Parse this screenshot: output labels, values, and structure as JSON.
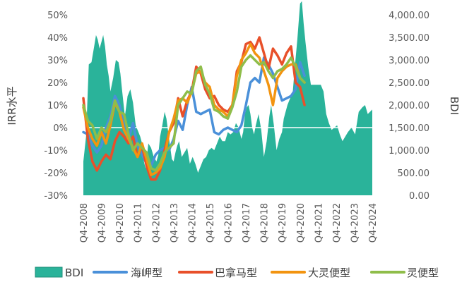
{
  "chart_data": {
    "type": "area+line",
    "left_axis": {
      "label": "IRR水平",
      "ticks": [
        "50%",
        "40%",
        "30%",
        "20%",
        "10%",
        "0%",
        "-10%",
        "-20%",
        "-30%"
      ],
      "values": [
        50,
        40,
        30,
        20,
        10,
        0,
        -10,
        -20,
        -30
      ],
      "ylim": [
        -30,
        50
      ]
    },
    "right_axis": {
      "label": "BDI",
      "ticks": [
        "4,000.00",
        "3,500.00",
        "3,000.00",
        "2,500.00",
        "2,000.00",
        "1,500.00",
        "1,000.00",
        "500.00",
        "0.00"
      ],
      "values": [
        4000,
        3500,
        3000,
        2500,
        2000,
        1500,
        1000,
        500,
        0
      ],
      "ylim": [
        0,
        4000
      ]
    },
    "x_axis": {
      "ticks": [
        "Q4-2008",
        "Q4-2009",
        "Q4-2010",
        "Q4-2011",
        "Q4-2012",
        "Q4-2013",
        "Q4-2014",
        "Q4-2015",
        "Q4-2016",
        "Q4-2017",
        "Q4-2018",
        "Q4-2019",
        "Q4-2020",
        "Q4-2021",
        "Q4-2022",
        "Q4-2023",
        "Q4-2024"
      ],
      "xlim": [
        2008.75,
        2024.75
      ]
    },
    "legend": {
      "placement": "bottom",
      "items": [
        "BDI",
        "海岬型",
        "巴拿马型",
        "大灵便型",
        "灵便型"
      ]
    },
    "zero_line": true,
    "bdi": {
      "name": "BDI",
      "color": "#2ab39a",
      "x": [
        2008.75,
        2008.9,
        2009.05,
        2009.2,
        2009.35,
        2009.45,
        2009.55,
        2009.65,
        2009.75,
        2009.85,
        2009.95,
        2010.05,
        2010.15,
        2010.25,
        2010.4,
        2010.55,
        2010.7,
        2010.8,
        2010.9,
        2011.05,
        2011.2,
        2011.35,
        2011.5,
        2011.65,
        2011.8,
        2011.9,
        2012.0,
        2012.1,
        2012.2,
        2012.35,
        2012.5,
        2012.65,
        2012.8,
        2012.9,
        2013.0,
        2013.1,
        2013.25,
        2013.35,
        2013.45,
        2013.55,
        2013.65,
        2013.75,
        2013.85,
        2013.95,
        2014.05,
        2014.2,
        2014.35,
        2014.5,
        2014.65,
        2014.8,
        2014.95,
        2015.1,
        2015.25,
        2015.4,
        2015.55,
        2015.7,
        2015.85,
        2016.0,
        2016.15,
        2016.3,
        2016.45,
        2016.6,
        2016.75,
        2016.9,
        2017.05,
        2017.2,
        2017.35,
        2017.5,
        2017.6,
        2017.7,
        2017.8,
        2017.9,
        2018.0,
        2018.1,
        2018.2,
        2018.3,
        2018.45,
        2018.6,
        2018.75,
        2018.9,
        2019.05,
        2019.15,
        2019.3,
        2019.45,
        2019.6,
        2019.75,
        2019.85,
        2019.95,
        2020.05,
        2020.15,
        2020.25,
        2020.35,
        2020.45,
        2020.6,
        2020.75,
        2020.85,
        2020.95,
        2021.05,
        2021.2,
        2021.35,
        2021.45,
        2021.6,
        2021.75,
        2021.9,
        2022.05,
        2022.2,
        2022.35,
        2022.5,
        2022.65,
        2022.8,
        2022.95,
        2023.1,
        2023.25,
        2023.4,
        2023.6,
        2023.8,
        2024.0,
        2024.2,
        2024.35,
        2024.5,
        2024.75
      ],
      "values": [
        750,
        1300,
        2900,
        2950,
        3300,
        3550,
        3450,
        3250,
        3400,
        3550,
        3300,
        2900,
        2650,
        2300,
        2600,
        3000,
        2950,
        2700,
        2300,
        1750,
        2200,
        2350,
        2050,
        1550,
        1400,
        1300,
        1150,
        750,
        600,
        1150,
        1050,
        850,
        750,
        900,
        1300,
        1500,
        1850,
        1700,
        1400,
        1100,
        800,
        750,
        950,
        1100,
        1200,
        850,
        950,
        1050,
        700,
        850,
        700,
        500,
        650,
        800,
        850,
        1000,
        1050,
        1000,
        1150,
        1300,
        1200,
        1200,
        1400,
        1350,
        1400,
        1600,
        1500,
        1250,
        1400,
        1800,
        1950,
        2000,
        1800,
        1500,
        1350,
        1550,
        1800,
        1450,
        850,
        1200,
        1750,
        2000,
        1550,
        1000,
        1250,
        1400,
        1700,
        1850,
        2000,
        2100,
        2200,
        2300,
        2800,
        3450,
        4250,
        4300,
        3800,
        3400,
        2850,
        2450,
        2450,
        2450,
        2450,
        2450,
        2300,
        1800,
        1600,
        1450,
        1500,
        1550,
        1350,
        1200,
        1300,
        1400,
        1500,
        1350,
        1850,
        1950,
        2000,
        1800,
        1900
      ]
    },
    "series": [
      {
        "name": "海岬型",
        "color": "#4a90d9",
        "x": [
          2008.75,
          2009.0,
          2009.25,
          2009.5,
          2009.75,
          2010.0,
          2010.25,
          2010.5,
          2010.75,
          2011.0,
          2011.25,
          2011.5,
          2011.75,
          2012.0,
          2012.25,
          2012.5,
          2012.75,
          2013.0,
          2013.25,
          2013.5,
          2013.75,
          2014.0,
          2014.25,
          2014.5,
          2014.75,
          2015.0,
          2015.25,
          2015.5,
          2015.75,
          2016.0,
          2016.25,
          2016.5,
          2016.75,
          2017.0,
          2017.25,
          2017.5,
          2017.75,
          2018.0,
          2018.25,
          2018.5,
          2018.75,
          2019.0,
          2019.25,
          2019.5,
          2019.75,
          2020.0,
          2020.25,
          2020.5,
          2020.75,
          2021.0
        ],
        "values": [
          -2,
          -3,
          -8,
          -11,
          -8,
          0,
          5,
          14,
          10,
          2,
          -5,
          2,
          -8,
          -12,
          -16,
          -17,
          -12,
          -10,
          -9,
          -10,
          -5,
          3,
          -1,
          10,
          18,
          7,
          6,
          7,
          8,
          -2,
          -3,
          -1,
          0,
          -1,
          -2,
          1,
          10,
          20,
          22,
          20,
          31,
          28,
          24,
          18,
          12,
          13,
          14,
          17,
          29,
          23
        ]
      },
      {
        "name": "巴拿马型",
        "color": "#e8502a",
        "x": [
          2008.75,
          2009.0,
          2009.25,
          2009.5,
          2009.75,
          2010.0,
          2010.25,
          2010.5,
          2010.75,
          2011.0,
          2011.25,
          2011.5,
          2011.75,
          2012.0,
          2012.25,
          2012.5,
          2012.75,
          2013.0,
          2013.25,
          2013.5,
          2013.75,
          2014.0,
          2014.25,
          2014.5,
          2014.75,
          2015.0,
          2015.25,
          2015.5,
          2015.75,
          2016.0,
          2016.25,
          2016.5,
          2016.75,
          2017.0,
          2017.25,
          2017.5,
          2017.75,
          2018.0,
          2018.25,
          2018.5,
          2018.75,
          2019.0,
          2019.25,
          2019.5,
          2019.75,
          2020.0,
          2020.25,
          2020.5,
          2020.75,
          2021.0
        ],
        "values": [
          13,
          -5,
          -15,
          -19,
          -15,
          -12,
          -14,
          -6,
          -2,
          -4,
          -7,
          -4,
          -13,
          -8,
          -17,
          -23,
          -23,
          -19,
          -10,
          -2,
          2,
          13,
          5,
          12,
          16,
          27,
          24,
          17,
          13,
          14,
          10,
          8,
          7,
          10,
          25,
          29,
          37,
          38,
          35,
          40,
          33,
          26,
          35,
          32,
          28,
          33,
          36,
          20,
          18,
          10
        ]
      },
      {
        "name": "大灵便型",
        "color": "#f29410",
        "x": [
          2008.75,
          2009.0,
          2009.25,
          2009.5,
          2009.75,
          2010.0,
          2010.25,
          2010.5,
          2010.75,
          2011.0,
          2011.25,
          2011.5,
          2011.75,
          2012.0,
          2012.25,
          2012.5,
          2012.75,
          2013.0,
          2013.25,
          2013.5,
          2013.75,
          2014.0,
          2014.25,
          2014.5,
          2014.75,
          2015.0,
          2015.25,
          2015.5,
          2015.75,
          2016.0,
          2016.25,
          2016.5,
          2016.75,
          2017.0,
          2017.25,
          2017.5,
          2017.75,
          2018.0,
          2018.25,
          2018.5,
          2018.75,
          2019.0,
          2019.25,
          2019.5,
          2019.75,
          2020.0,
          2020.25,
          2020.5,
          2020.75,
          2021.0
        ],
        "values": [
          9,
          0,
          -5,
          -8,
          -2,
          -7,
          1,
          11,
          7,
          -1,
          -5,
          -9,
          -13,
          -7,
          -14,
          -21,
          -20,
          -18,
          -13,
          -2,
          4,
          12,
          13,
          11,
          16,
          24,
          25,
          20,
          18,
          10,
          8,
          7,
          5,
          10,
          23,
          30,
          33,
          37,
          33,
          31,
          25,
          19,
          10,
          22,
          25,
          27,
          28,
          28,
          22,
          20
        ]
      },
      {
        "name": "灵便型",
        "color": "#8fbd4a",
        "x": [
          2008.75,
          2009.0,
          2009.25,
          2009.5,
          2009.75,
          2010.0,
          2010.25,
          2010.5,
          2010.75,
          2011.0,
          2011.25,
          2011.5,
          2011.75,
          2012.0,
          2012.25,
          2012.5,
          2012.75,
          2013.0,
          2013.25,
          2013.5,
          2013.75,
          2014.0,
          2014.25,
          2014.5,
          2014.75,
          2015.0,
          2015.25,
          2015.5,
          2015.75,
          2016.0,
          2016.25,
          2016.5,
          2016.75,
          2017.0,
          2017.25,
          2017.5,
          2017.75,
          2018.0,
          2018.25,
          2018.5,
          2018.75,
          2019.0,
          2019.25,
          2019.5,
          2019.75,
          2020.0,
          2020.25,
          2020.5,
          2020.75,
          2021.0
        ],
        "values": [
          10,
          3,
          1,
          -5,
          0,
          -2,
          3,
          12,
          7,
          6,
          -3,
          -10,
          -7,
          -9,
          -11,
          -18,
          -19,
          -16,
          -11,
          -9,
          -7,
          10,
          13,
          16,
          15,
          25,
          27,
          19,
          15,
          8,
          7,
          5,
          4,
          9,
          16,
          27,
          30,
          32,
          30,
          28,
          29,
          25,
          22,
          25,
          26,
          28,
          31,
          27,
          22,
          20
        ]
      }
    ]
  }
}
